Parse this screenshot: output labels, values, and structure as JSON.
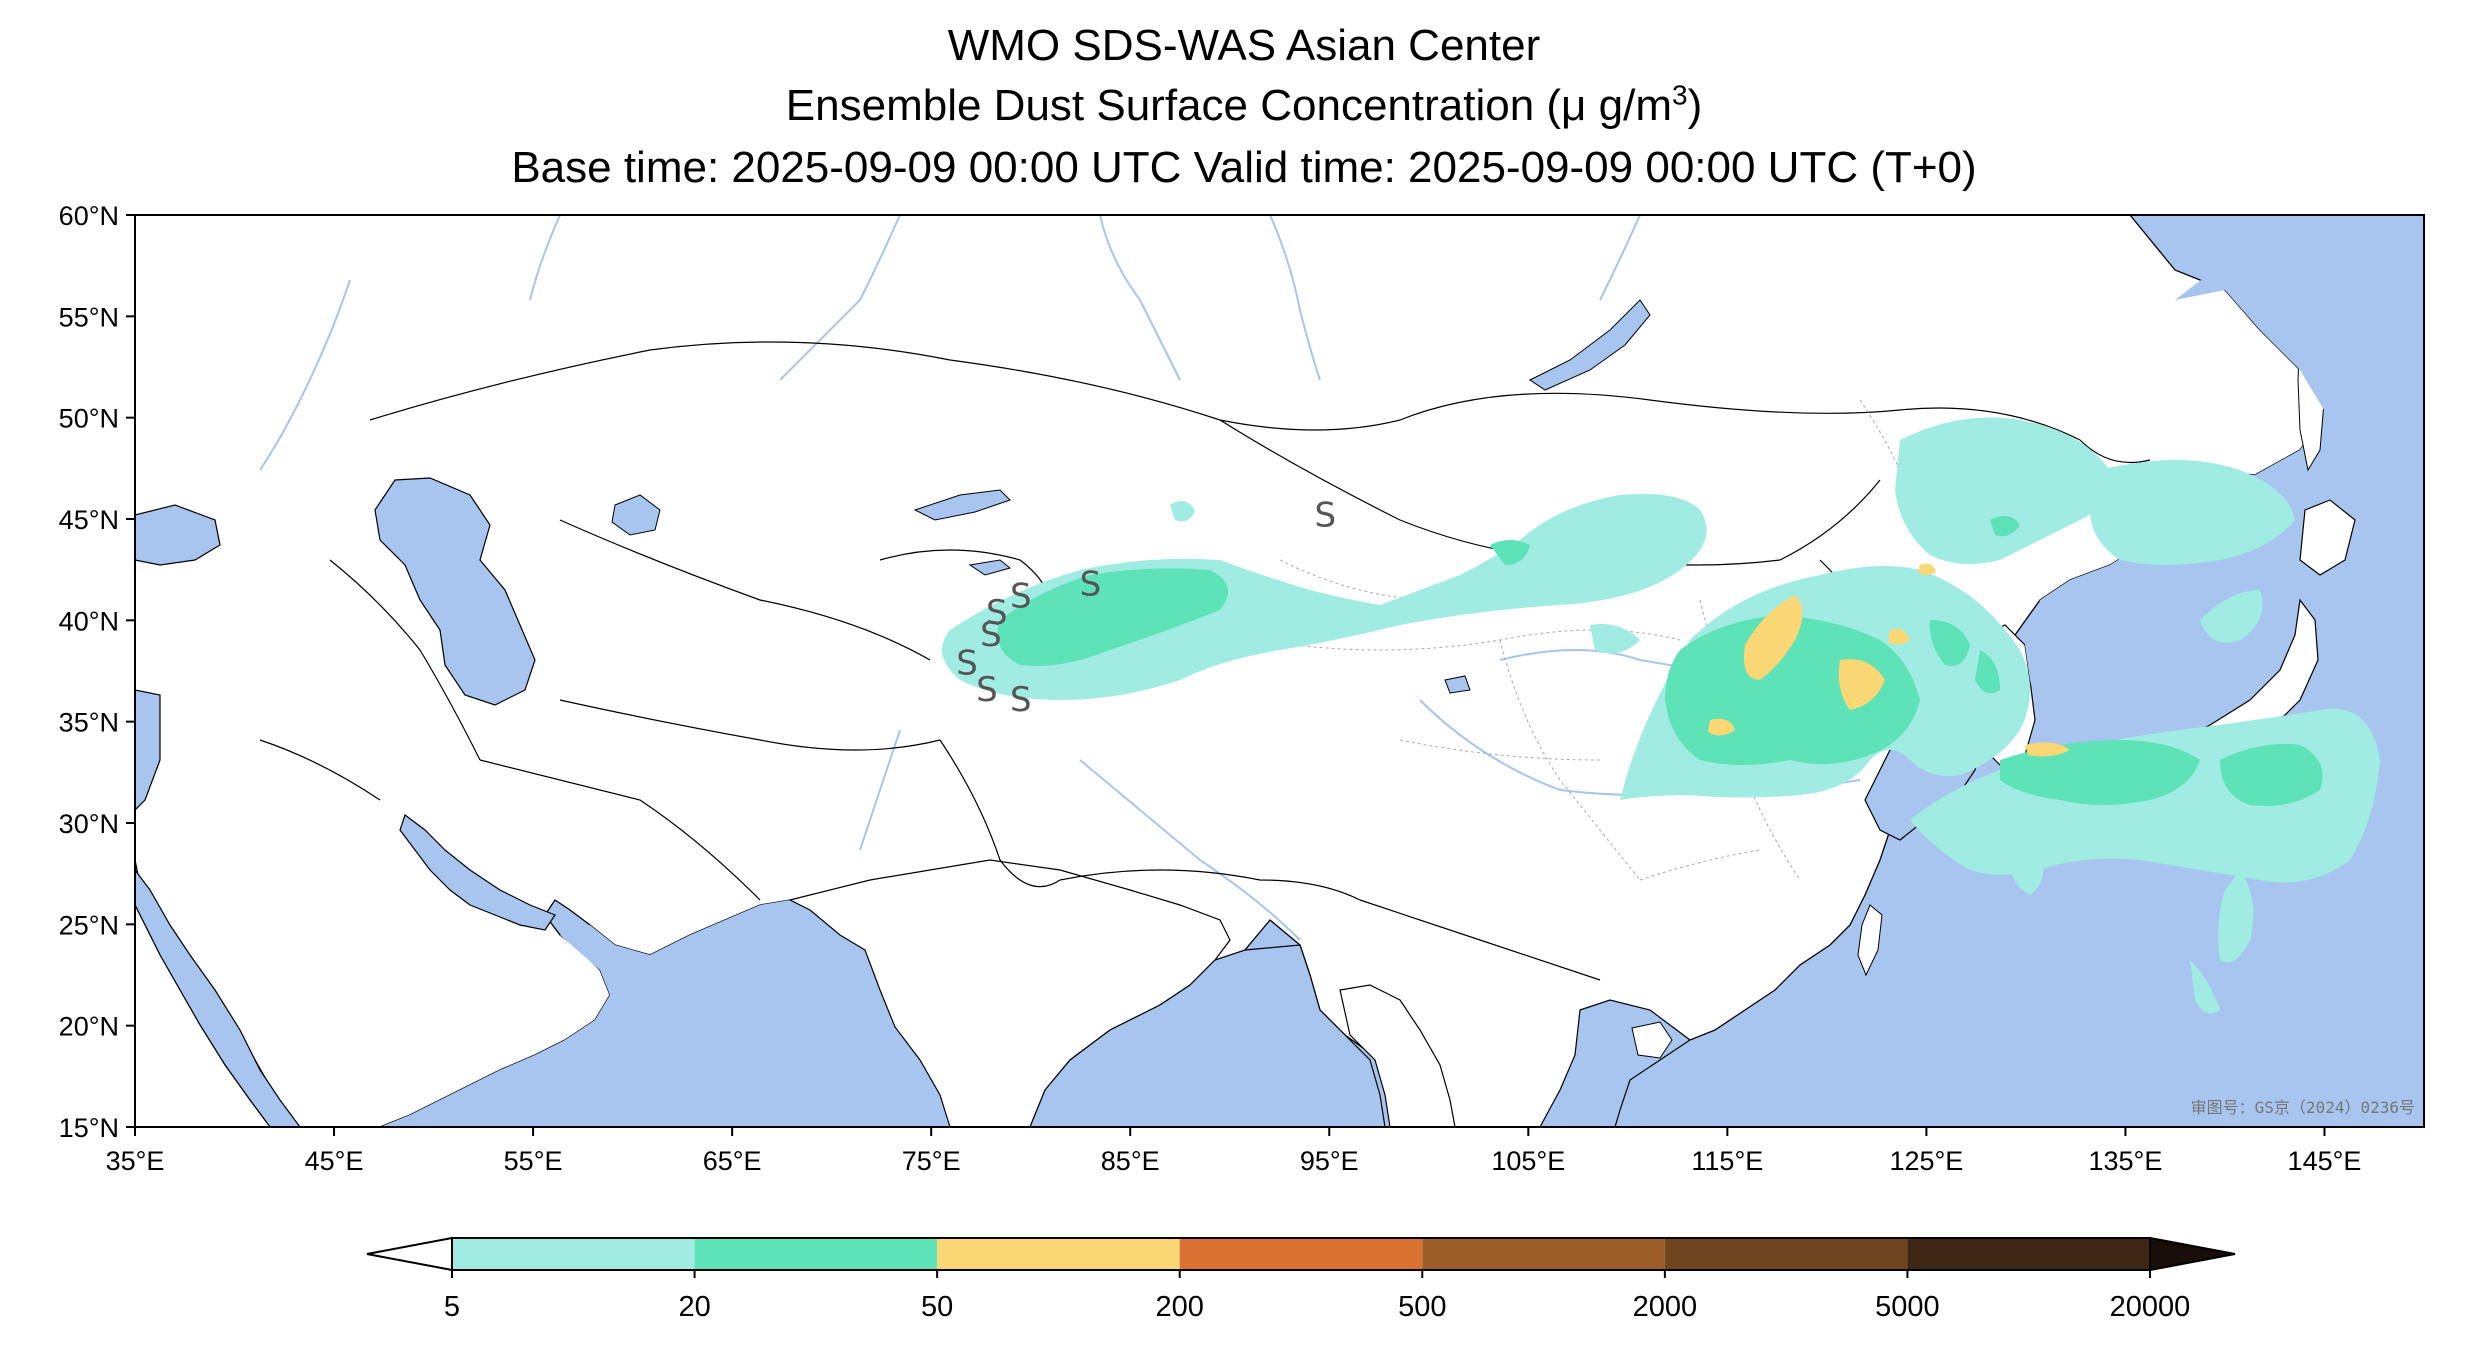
{
  "title": {
    "line1": "WMO SDS-WAS Asian Center",
    "line2_prefix": "Ensemble Dust Surface Concentration (",
    "line2_unit": "μ g/m",
    "line2_sup": "3",
    "line2_suffix": ")",
    "line3": "Base time: 2025-09-09 00:00 UTC Valid time: 2025-09-09 00:00 UTC (T+0)"
  },
  "map": {
    "lon_range": [
      35,
      150
    ],
    "lat_range": [
      15,
      60
    ],
    "lon_ticks": [
      "35°E",
      "45°E",
      "55°E",
      "65°E",
      "75°E",
      "85°E",
      "95°E",
      "105°E",
      "115°E",
      "125°E",
      "135°E",
      "145°E"
    ],
    "lat_ticks": [
      "60°N",
      "55°N",
      "50°N",
      "45°N",
      "40°N",
      "35°N",
      "30°N",
      "25°N",
      "20°N",
      "15°N"
    ],
    "colors": {
      "ocean": "#a7c5ee",
      "land": "#ffffff",
      "river": "#a7c5ee"
    },
    "station_marker": "S",
    "stations_lonlat": [
      [
        76.8,
        37.8
      ],
      [
        77.8,
        36.5
      ],
      [
        79.5,
        36.0
      ],
      [
        78.0,
        39.2
      ],
      [
        78.3,
        40.3
      ],
      [
        79.5,
        41.1
      ],
      [
        83.0,
        41.7
      ],
      [
        94.8,
        45.1
      ]
    ],
    "watermark": "审图号：GS京（2024）0236号"
  },
  "colorbar": {
    "labels": [
      "5",
      "20",
      "50",
      "200",
      "500",
      "2000",
      "5000",
      "20000"
    ],
    "colors": [
      "#a0ece2",
      "#5ee2b8",
      "#fbd775",
      "#da7232",
      "#9d5d26",
      "#6e4520",
      "#3d2613",
      "#1a0f08"
    ]
  }
}
